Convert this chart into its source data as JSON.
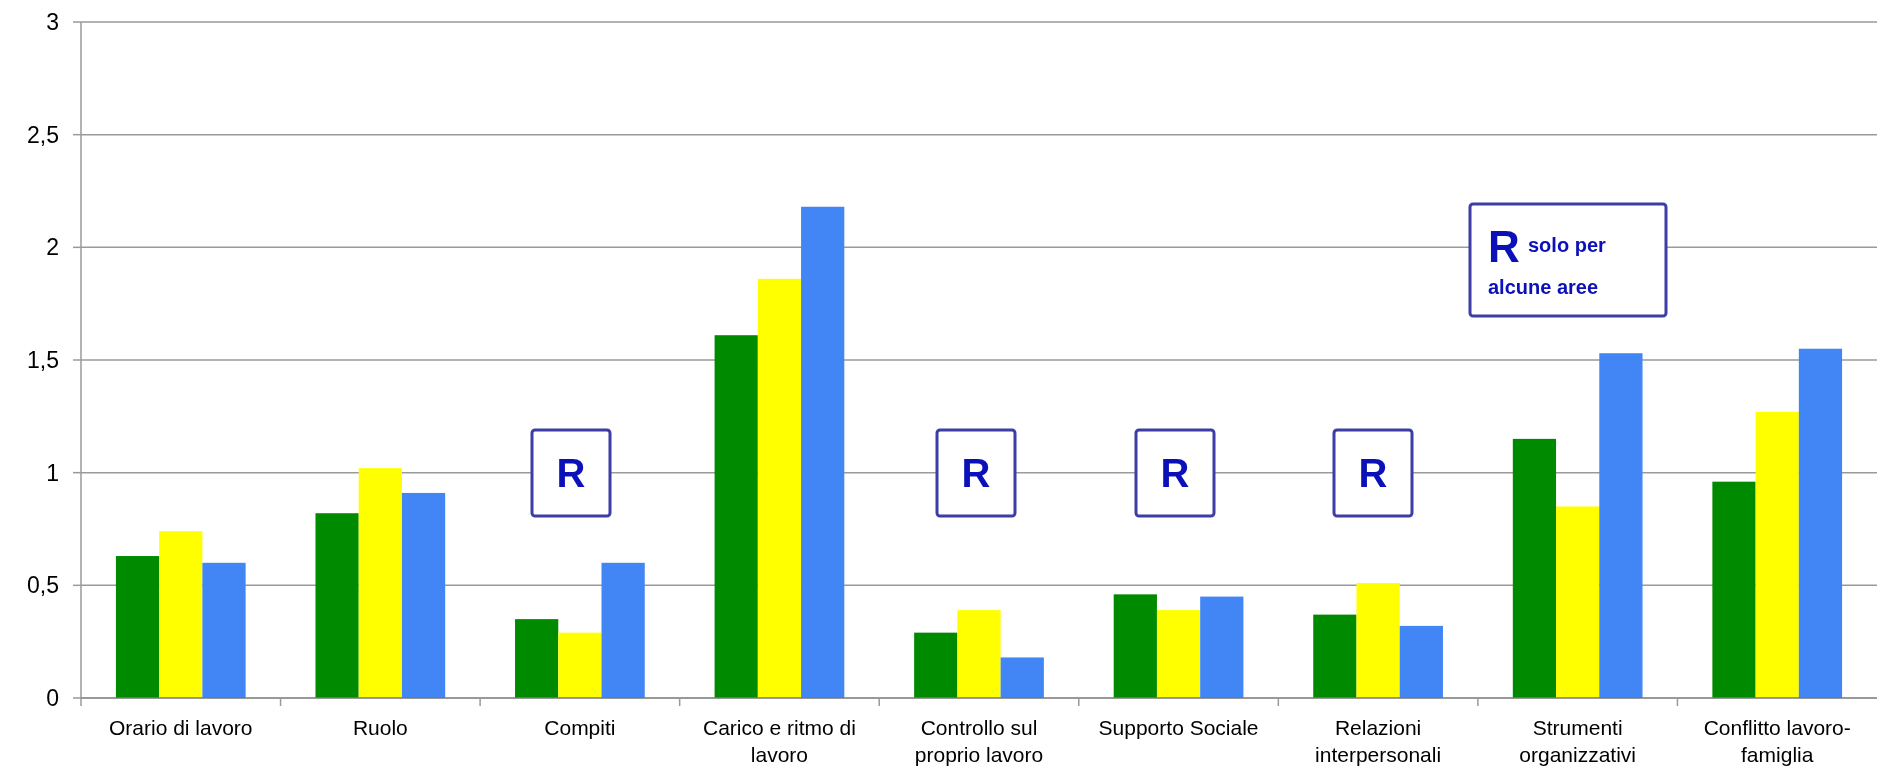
{
  "chart_data": {
    "type": "bar",
    "categories": [
      "Orario di lavoro",
      "Ruolo",
      "Compiti",
      "Carico e ritmo di lavoro",
      "Controllo sul proprio lavoro",
      "Supporto Sociale",
      "Relazioni interpersonali",
      "Strumenti organizzativi",
      "Conflitto lavoro-famiglia"
    ],
    "series": [
      {
        "color": "#008a00",
        "values": [
          0.63,
          0.82,
          0.35,
          1.61,
          0.29,
          0.46,
          0.37,
          1.15,
          0.96
        ]
      },
      {
        "color": "#ffff00",
        "values": [
          0.74,
          1.02,
          0.29,
          1.86,
          0.39,
          0.39,
          0.51,
          0.85,
          1.27
        ]
      },
      {
        "color": "#4285f4",
        "values": [
          0.6,
          0.91,
          0.6,
          2.18,
          0.18,
          0.45,
          0.32,
          1.53,
          1.55
        ]
      }
    ],
    "ylim": [
      0,
      3
    ],
    "yticks": [
      0,
      {
        "value": 0.5,
        "label": "0,5"
      },
      1,
      {
        "value": 1.5,
        "label": "1,5"
      },
      2,
      {
        "value": 2.5,
        "label": "2,5"
      },
      3
    ],
    "grid": "y",
    "annotations": [
      "R",
      "R",
      "R",
      "R",
      "R solo per alcune aree"
    ]
  }
}
